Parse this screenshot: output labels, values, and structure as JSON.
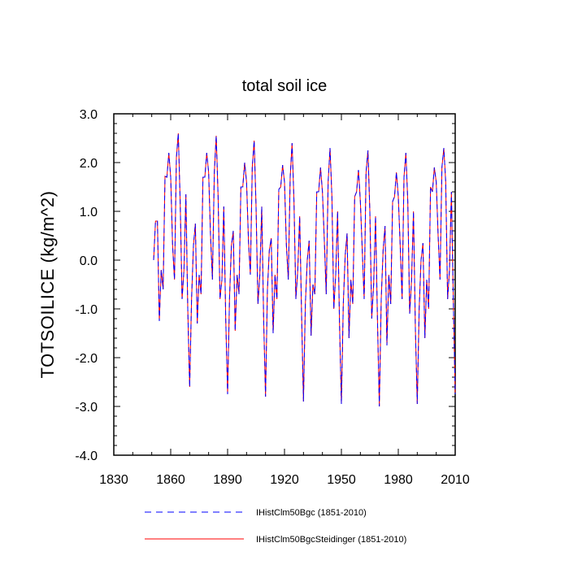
{
  "chart_data": {
    "type": "line",
    "title": "total soil ice",
    "xlabel": "",
    "ylabel": "TOTSOILICE  (kg/m^2)",
    "xlim": [
      1830,
      2010
    ],
    "ylim": [
      -4.0,
      3.0
    ],
    "xticks": [
      1830,
      1860,
      1890,
      1920,
      1950,
      1980,
      2010
    ],
    "yticks": [
      -4.0,
      -3.0,
      -2.0,
      -1.0,
      0.0,
      1.0,
      2.0,
      3.0
    ],
    "xtick_labels": [
      "1830",
      "1860",
      "1890",
      "1920",
      "1950",
      "1980",
      "2010"
    ],
    "ytick_labels": [
      "-4.0",
      "-3.0",
      "-2.0",
      "-1.0",
      "0.0",
      "1.0",
      "2.0",
      "3.0"
    ],
    "grid": false,
    "legend_position": "bottom",
    "x": [
      1851,
      1852,
      1853,
      1854,
      1855,
      1856,
      1857,
      1858,
      1859,
      1860,
      1861,
      1862,
      1863,
      1864,
      1865,
      1866,
      1867,
      1868,
      1869,
      1870,
      1871,
      1872,
      1873,
      1874,
      1875,
      1876,
      1877,
      1878,
      1879,
      1880,
      1881,
      1882,
      1883,
      1884,
      1885,
      1886,
      1887,
      1888,
      1889,
      1890,
      1891,
      1892,
      1893,
      1894,
      1895,
      1896,
      1897,
      1898,
      1899,
      1900,
      1901,
      1902,
      1903,
      1904,
      1905,
      1906,
      1907,
      1908,
      1909,
      1910,
      1911,
      1912,
      1913,
      1914,
      1915,
      1916,
      1917,
      1918,
      1919,
      1920,
      1921,
      1922,
      1923,
      1924,
      1925,
      1926,
      1927,
      1928,
      1929,
      1930,
      1931,
      1932,
      1933,
      1934,
      1935,
      1936,
      1937,
      1938,
      1939,
      1940,
      1941,
      1942,
      1943,
      1944,
      1945,
      1946,
      1947,
      1948,
      1949,
      1950,
      1951,
      1952,
      1953,
      1954,
      1955,
      1956,
      1957,
      1958,
      1959,
      1960,
      1961,
      1962,
      1963,
      1964,
      1965,
      1966,
      1967,
      1968,
      1969,
      1970,
      1971,
      1972,
      1973,
      1974,
      1975,
      1976,
      1977,
      1978,
      1979,
      1980,
      1981,
      1982,
      1983,
      1984,
      1985,
      1986,
      1987,
      1988,
      1989,
      1990,
      1991,
      1992,
      1993,
      1994,
      1995,
      1996,
      1997,
      1998,
      1999,
      2000,
      2001,
      2002,
      2003,
      2004,
      2005,
      2006,
      2007,
      2008,
      2009,
      2010
    ],
    "series": [
      {
        "name": "IHistClm50Bgc (1851-2010)",
        "color": "#0000ff",
        "dash": "dashed",
        "values": [
          0.0,
          0.8,
          0.8,
          -1.25,
          -0.2,
          -0.6,
          1.72,
          1.7,
          2.2,
          1.7,
          0.3,
          -0.4,
          2.1,
          2.6,
          1.2,
          -0.8,
          -0.2,
          1.35,
          -1.0,
          -2.6,
          -0.8,
          0.3,
          0.75,
          -1.3,
          -0.3,
          -0.7,
          1.7,
          1.7,
          2.2,
          1.8,
          0.5,
          -0.4,
          1.8,
          2.55,
          1.3,
          -0.8,
          -0.4,
          1.1,
          -1.2,
          -2.75,
          -0.8,
          0.3,
          0.6,
          -1.45,
          -0.3,
          -0.7,
          1.5,
          1.5,
          2.0,
          1.6,
          0.4,
          -0.3,
          1.9,
          2.45,
          1.1,
          -0.9,
          -0.3,
          1.1,
          -1.2,
          -2.8,
          -0.6,
          0.2,
          0.45,
          -1.5,
          -0.3,
          -0.8,
          1.45,
          1.5,
          1.95,
          1.6,
          0.3,
          -0.4,
          1.7,
          2.4,
          1.2,
          -0.8,
          -0.2,
          0.9,
          -1.1,
          -2.9,
          -0.9,
          0.0,
          0.4,
          -1.55,
          -0.5,
          -0.7,
          1.4,
          1.4,
          1.9,
          1.4,
          0.4,
          -0.7,
          1.6,
          2.3,
          1.3,
          -1.0,
          -0.3,
          1.0,
          -1.3,
          -2.95,
          -0.9,
          0.1,
          0.55,
          -1.6,
          -0.4,
          -0.9,
          1.3,
          1.4,
          1.85,
          1.2,
          0.2,
          -0.8,
          1.8,
          2.25,
          1.0,
          -1.2,
          -0.5,
          0.9,
          -1.2,
          -3.0,
          -0.8,
          0.2,
          0.7,
          -1.75,
          -0.3,
          -0.9,
          1.2,
          1.3,
          1.8,
          1.3,
          0.3,
          -0.8,
          1.7,
          2.2,
          1.2,
          -1.1,
          -0.4,
          1.0,
          -1.4,
          -2.95,
          -1.0,
          0.0,
          0.35,
          -1.6,
          -0.4,
          -1.0,
          1.5,
          1.4,
          1.9,
          1.6,
          0.5,
          -0.4,
          1.9,
          2.3,
          1.6,
          -0.8,
          -0.2,
          1.4,
          -0.8,
          -2.75
        ]
      },
      {
        "name": "IHistClm50BgcSteidinger (1851-2010)",
        "color": "#ff0000",
        "dash": "solid",
        "values": [
          0.0,
          0.8,
          0.8,
          -1.25,
          -0.2,
          -0.6,
          1.72,
          1.7,
          2.2,
          1.7,
          0.3,
          -0.4,
          2.1,
          2.6,
          1.2,
          -0.8,
          -0.2,
          1.35,
          -1.0,
          -2.6,
          -0.8,
          0.3,
          0.75,
          -1.3,
          -0.3,
          -0.7,
          1.7,
          1.7,
          2.2,
          1.8,
          0.5,
          -0.4,
          1.8,
          2.55,
          1.3,
          -0.8,
          -0.4,
          1.1,
          -1.2,
          -2.75,
          -0.8,
          0.3,
          0.6,
          -1.45,
          -0.3,
          -0.7,
          1.5,
          1.5,
          2.0,
          1.6,
          0.4,
          -0.3,
          1.9,
          2.45,
          1.1,
          -0.9,
          -0.3,
          1.1,
          -1.2,
          -2.8,
          -0.6,
          0.2,
          0.45,
          -1.5,
          -0.3,
          -0.8,
          1.45,
          1.5,
          1.95,
          1.6,
          0.3,
          -0.4,
          1.7,
          2.4,
          1.2,
          -0.8,
          -0.2,
          0.9,
          -1.1,
          -2.9,
          -0.9,
          0.0,
          0.4,
          -1.55,
          -0.5,
          -0.7,
          1.4,
          1.4,
          1.9,
          1.4,
          0.4,
          -0.7,
          1.6,
          2.3,
          1.3,
          -1.0,
          -0.3,
          1.0,
          -1.3,
          -2.95,
          -0.9,
          0.1,
          0.55,
          -1.6,
          -0.4,
          -0.9,
          1.3,
          1.4,
          1.85,
          1.2,
          0.2,
          -0.8,
          1.8,
          2.25,
          1.0,
          -1.2,
          -0.5,
          0.9,
          -1.2,
          -3.0,
          -0.8,
          0.2,
          0.7,
          -1.75,
          -0.3,
          -0.9,
          1.2,
          1.3,
          1.8,
          1.3,
          0.3,
          -0.8,
          1.7,
          2.2,
          1.2,
          -1.1,
          -0.4,
          1.0,
          -1.4,
          -2.95,
          -1.0,
          0.0,
          0.35,
          -1.6,
          -0.4,
          -1.0,
          1.5,
          1.4,
          1.9,
          1.6,
          0.5,
          -0.4,
          1.9,
          2.3,
          1.6,
          -0.8,
          -0.2,
          1.4,
          -0.8,
          -2.75
        ]
      }
    ]
  }
}
